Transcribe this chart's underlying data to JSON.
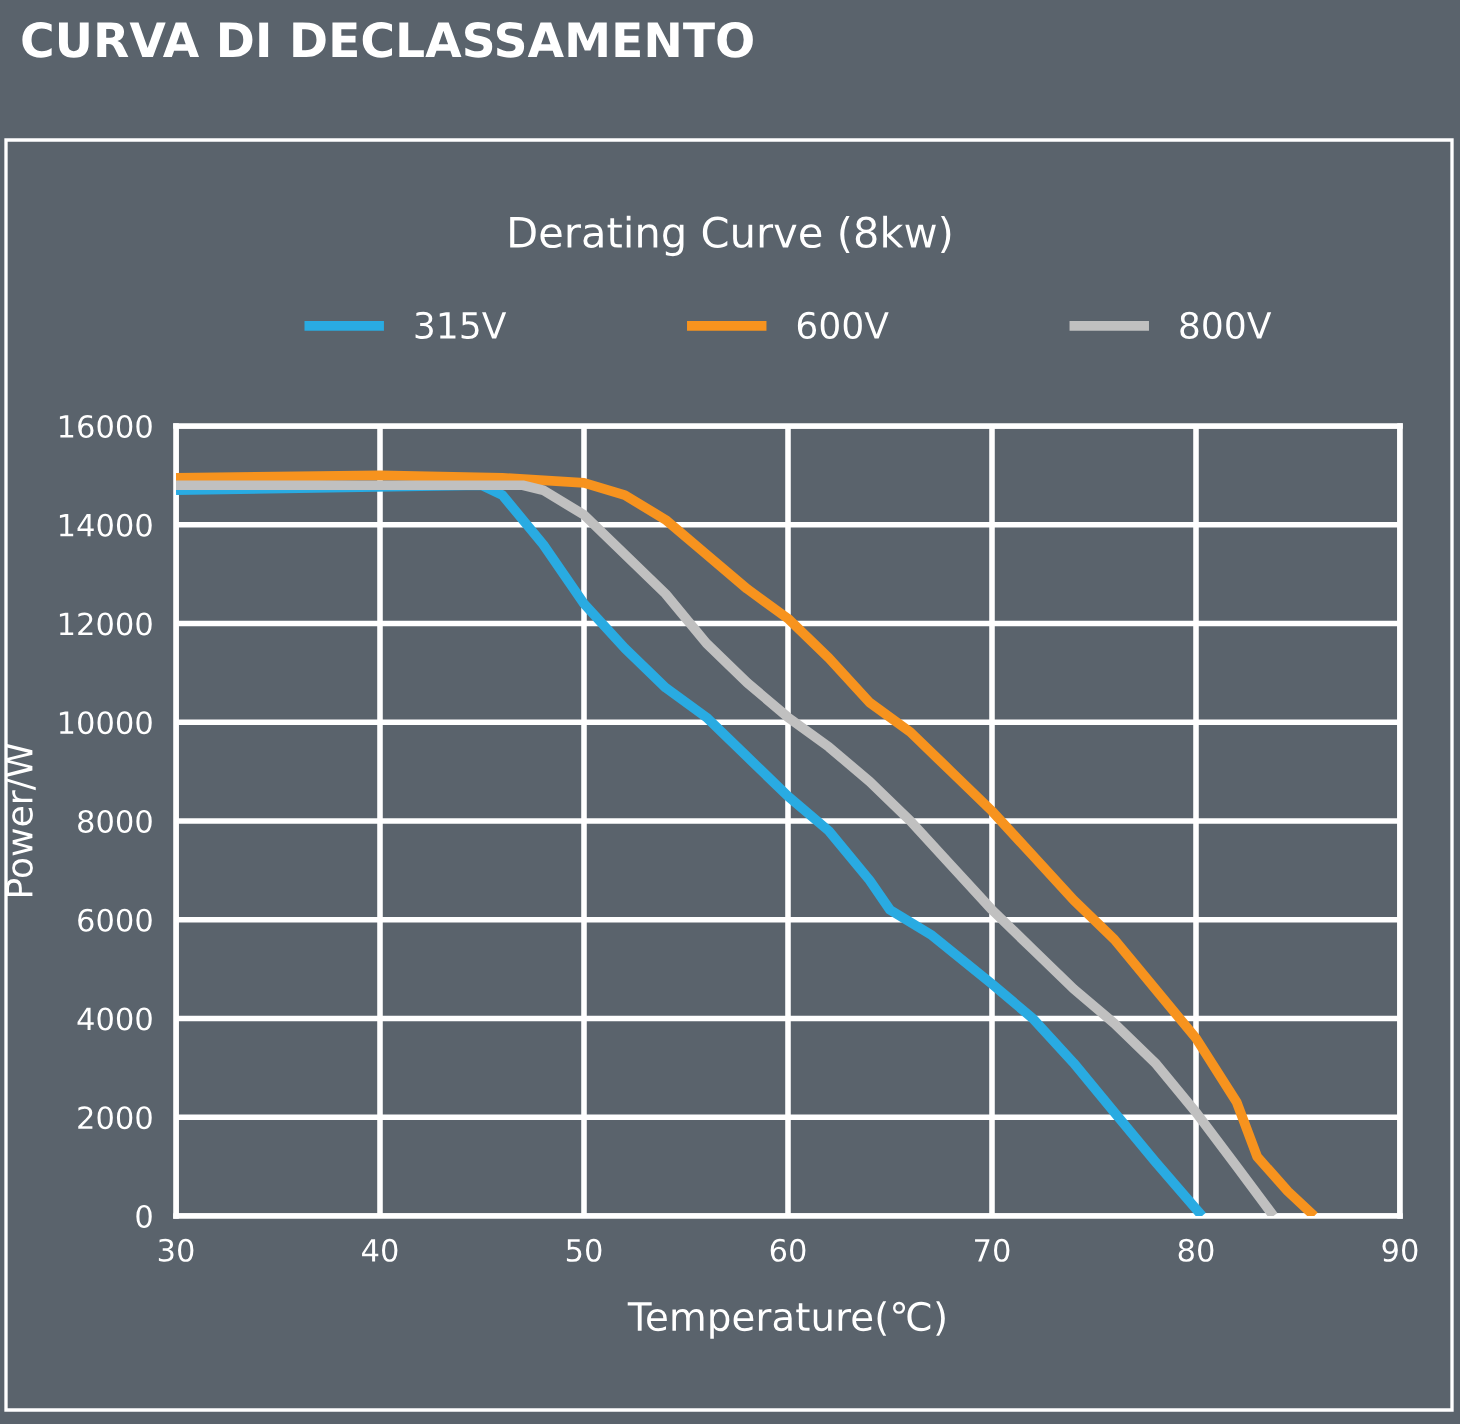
{
  "chart_data": {
    "type": "line",
    "title": "Derating Curve (8kw)",
    "annotations": [
      "CURVA DI DECLASSAMENTO"
    ],
    "xlabel": "Temperature(℃)",
    "ylabel": "Power/W",
    "xlim": [
      30,
      90
    ],
    "xticks": [
      30,
      40,
      50,
      60,
      70,
      80,
      90
    ],
    "ylim": [
      0,
      16000
    ],
    "yticks": [
      0,
      2000,
      4000,
      6000,
      8000,
      10000,
      12000,
      14000,
      16000
    ],
    "grid": true,
    "legend": "top",
    "marker": "none",
    "line_style": "solid",
    "series": [
      {
        "name": "315V",
        "color": "#29abe2",
        "x": [
          30,
          45,
          46,
          48,
          50,
          52,
          54,
          56,
          58,
          60,
          62,
          64,
          65,
          67,
          70,
          72,
          74,
          76,
          78,
          80.3
        ],
        "values": [
          14700,
          14800,
          14600,
          13600,
          12400,
          11500,
          10700,
          10100,
          9300,
          8500,
          7800,
          6800,
          6200,
          5700,
          4700,
          4000,
          3100,
          2100,
          1100,
          0
        ]
      },
      {
        "name": "600V",
        "color": "#f7931e",
        "x": [
          30,
          40,
          46,
          50,
          52,
          54,
          56,
          58,
          60,
          62,
          64,
          66,
          68,
          70,
          72,
          74,
          76,
          78,
          80,
          82,
          83,
          84.5,
          85.8
        ],
        "values": [
          14950,
          15000,
          14950,
          14850,
          14600,
          14100,
          13400,
          12700,
          12100,
          11300,
          10400,
          9800,
          9000,
          8200,
          7300,
          6400,
          5600,
          4600,
          3600,
          2300,
          1200,
          500,
          0
        ]
      },
      {
        "name": "800V",
        "color": "#c0c0c0",
        "x": [
          30,
          47,
          48,
          50,
          52,
          54,
          56,
          58,
          60,
          62,
          64,
          66,
          68,
          70,
          72,
          74,
          76,
          78,
          80,
          82,
          83.8
        ],
        "values": [
          14800,
          14800,
          14700,
          14200,
          13400,
          12600,
          11600,
          10800,
          10100,
          9500,
          8800,
          8000,
          7100,
          6200,
          5400,
          4600,
          3900,
          3100,
          2100,
          1000,
          0
        ]
      }
    ]
  }
}
